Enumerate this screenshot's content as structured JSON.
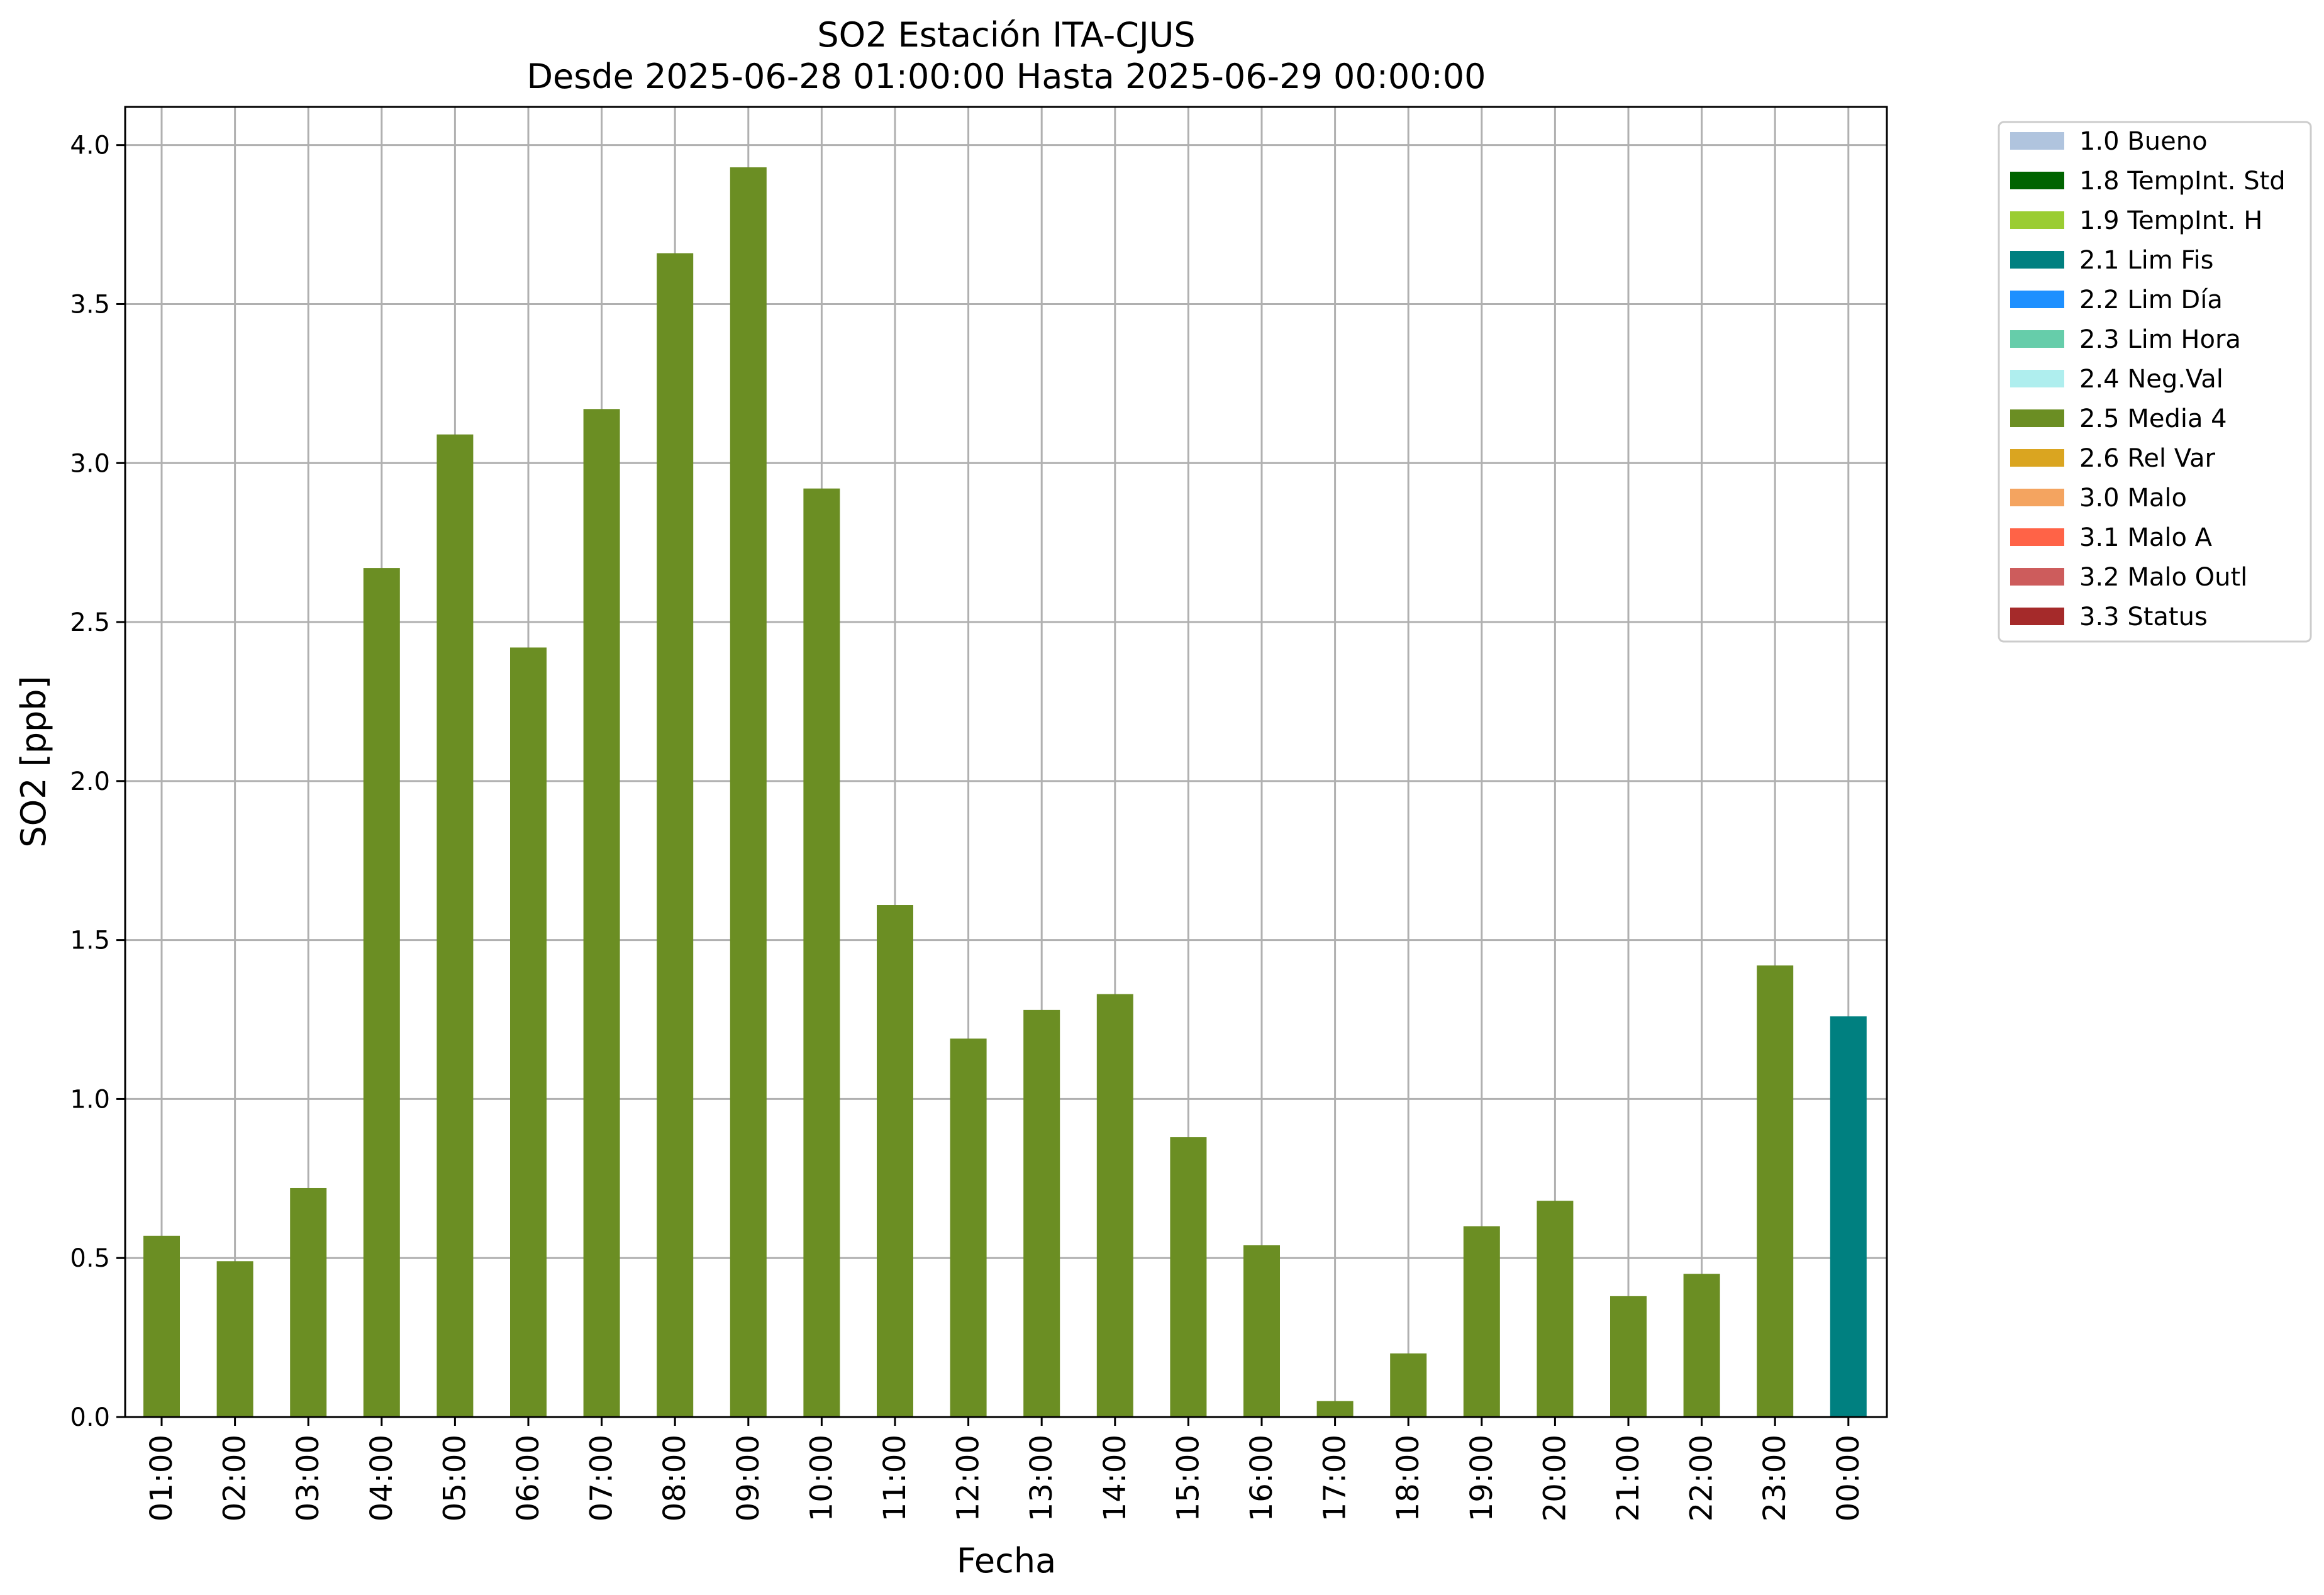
{
  "chart_data": {
    "type": "bar",
    "title": [
      "SO2 Estación ITA-CJUS",
      "Desde 2025-06-28 01:00:00 Hasta 2025-06-29 00:00:00"
    ],
    "xlabel": "Fecha",
    "ylabel": "SO2 [ppb]",
    "ylim": [
      0,
      4.12
    ],
    "yticks": [
      "0.0",
      "0.5",
      "1.0",
      "1.5",
      "2.0",
      "2.5",
      "3.0",
      "3.5",
      "4.0"
    ],
    "grid": true,
    "legend_position": "outside-top-right",
    "categories": [
      "01:00",
      "02:00",
      "03:00",
      "04:00",
      "05:00",
      "06:00",
      "07:00",
      "08:00",
      "09:00",
      "10:00",
      "11:00",
      "12:00",
      "13:00",
      "14:00",
      "15:00",
      "16:00",
      "17:00",
      "18:00",
      "19:00",
      "20:00",
      "21:00",
      "22:00",
      "23:00",
      "00:00"
    ],
    "values": [
      0.57,
      0.49,
      0.72,
      2.67,
      3.09,
      2.42,
      3.17,
      3.66,
      3.93,
      2.92,
      1.61,
      1.19,
      1.28,
      1.33,
      0.88,
      0.54,
      0.05,
      0.2,
      0.6,
      0.68,
      0.38,
      0.45,
      1.42,
      1.26
    ],
    "bar_flags": [
      "2.5 Media 4",
      "2.5 Media 4",
      "2.5 Media 4",
      "2.5 Media 4",
      "2.5 Media 4",
      "2.5 Media 4",
      "2.5 Media 4",
      "2.5 Media 4",
      "2.5 Media 4",
      "2.5 Media 4",
      "2.5 Media 4",
      "2.5 Media 4",
      "2.5 Media 4",
      "2.5 Media 4",
      "2.5 Media 4",
      "2.5 Media 4",
      "2.5 Media 4",
      "2.5 Media 4",
      "2.5 Media 4",
      "2.5 Media 4",
      "2.5 Media 4",
      "2.5 Media 4",
      "2.5 Media 4",
      "2.1 Lim Fis"
    ],
    "legend": [
      {
        "label": "1.0 Bueno",
        "color": "#b0c4de"
      },
      {
        "label": "1.8 TempInt. Std",
        "color": "#006400"
      },
      {
        "label": "1.9 TempInt. H",
        "color": "#9acd32"
      },
      {
        "label": "2.1 Lim Fis",
        "color": "#008080"
      },
      {
        "label": "2.2 Lim Día",
        "color": "#1e90ff"
      },
      {
        "label": "2.3 Lim Hora",
        "color": "#66cdaa"
      },
      {
        "label": "2.4 Neg.Val",
        "color": "#afeeee"
      },
      {
        "label": "2.5 Media 4",
        "color": "#6b8e23"
      },
      {
        "label": "2.6 Rel Var",
        "color": "#daa520"
      },
      {
        "label": "3.0 Malo",
        "color": "#f4a460"
      },
      {
        "label": "3.1 Malo A",
        "color": "#ff6347"
      },
      {
        "label": "3.2 Malo Outl",
        "color": "#cd5c5c"
      },
      {
        "label": "3.3 Status",
        "color": "#a52a2a"
      }
    ]
  }
}
